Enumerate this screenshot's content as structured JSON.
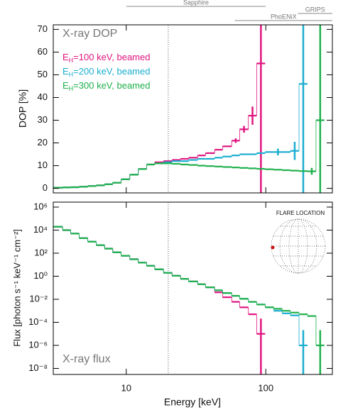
{
  "chart_data": [
    {
      "type": "histogram",
      "panel_label": "X-ray DOP",
      "ylabel": "DOP [%]",
      "xlim": [
        3,
        300
      ],
      "xticks": [
        10,
        100
      ],
      "x_log": true,
      "show_x_tick_labels": false,
      "ylim": [
        -2,
        72
      ],
      "yticks": [
        0,
        10,
        20,
        30,
        40,
        50,
        60,
        70
      ],
      "y_log": false,
      "reference_line_x": 20,
      "instruments": [
        {
          "label": "Sapphire",
          "range": [
            10,
            100
          ]
        },
        {
          "label": "GRIPS",
          "range": [
            170,
            300
          ]
        },
        {
          "label": "PhoENiX",
          "range": [
            60,
            300
          ]
        }
      ],
      "series": [
        {
          "name": "EH=100 keV, beamed",
          "color": "#e0157f",
          "bins": [
            3,
            3.5,
            4,
            4.6,
            5.3,
            6.1,
            7,
            8,
            9.2,
            10.6,
            12.2,
            14,
            16,
            18.5,
            21.3,
            24.5,
            28,
            32.5,
            37,
            43,
            49,
            57,
            65,
            75,
            86,
            99
          ],
          "values": [
            0.3,
            0.4,
            0.5,
            0.7,
            1,
            1.3,
            1.8,
            2.5,
            4,
            6,
            8.5,
            10.5,
            11.5,
            12,
            12.5,
            13,
            13.5,
            14.5,
            15.5,
            17,
            18.5,
            21,
            26,
            32,
            55
          ],
          "errors": [
            null,
            null,
            null,
            null,
            null,
            null,
            null,
            null,
            null,
            null,
            null,
            null,
            null,
            null,
            null,
            null,
            null,
            null,
            null,
            null,
            null,
            1,
            1.5,
            4,
            60
          ]
        },
        {
          "name": "EH=200 keV, beamed",
          "color": "#1aaed0",
          "bins": [
            3,
            3.5,
            4,
            4.6,
            5.3,
            6.1,
            7,
            8,
            9.2,
            10.6,
            12.2,
            14,
            16,
            18.5,
            21.3,
            24.5,
            28,
            32.5,
            37,
            43,
            49,
            57,
            65,
            75,
            86,
            99,
            114,
            131,
            150,
            173,
            199
          ],
          "values": [
            0.3,
            0.4,
            0.5,
            0.7,
            1,
            1.3,
            1.8,
            2.5,
            4,
            6,
            8.5,
            10.5,
            11,
            11.5,
            12,
            12,
            12.5,
            13,
            13,
            13.5,
            14,
            14.5,
            15,
            15,
            15.5,
            16,
            16,
            16,
            16.5,
            46
          ],
          "errors": [
            null,
            null,
            null,
            null,
            null,
            null,
            null,
            null,
            null,
            null,
            null,
            null,
            null,
            null,
            null,
            null,
            null,
            null,
            null,
            null,
            null,
            null,
            null,
            null,
            null,
            null,
            1.5,
            null,
            4,
            60
          ]
        },
        {
          "name": "EH=300 keV, beamed",
          "color": "#1fb04c",
          "bins": [
            3,
            3.5,
            4,
            4.6,
            5.3,
            6.1,
            7,
            8,
            9.2,
            10.6,
            12.2,
            14,
            16,
            18.5,
            21.3,
            24.5,
            28,
            32.5,
            37,
            43,
            49,
            57,
            65,
            75,
            86,
            99,
            114,
            131,
            150,
            173,
            199,
            229,
            263
          ],
          "values": [
            0.3,
            0.4,
            0.5,
            0.7,
            1,
            1.3,
            1.8,
            2.5,
            4,
            6,
            8.5,
            10.5,
            11,
            11,
            10.8,
            10.5,
            10.3,
            10,
            9.8,
            9.6,
            9.4,
            9.2,
            9,
            8.8,
            8.6,
            8.4,
            8.2,
            8,
            7.8,
            7.6,
            7.5,
            30
          ],
          "errors": [
            null,
            null,
            null,
            null,
            null,
            null,
            null,
            null,
            null,
            null,
            null,
            null,
            null,
            null,
            null,
            null,
            null,
            null,
            null,
            null,
            null,
            null,
            null,
            null,
            null,
            null,
            null,
            null,
            null,
            null,
            1.5,
            60
          ]
        }
      ]
    },
    {
      "type": "histogram",
      "panel_label": "X-ray flux",
      "ylabel": "Flux [photon s⁻¹ keV⁻¹ cm⁻²]",
      "xlabel": "Energy [keV]",
      "inset_title": "FLARE LOCATION",
      "xlim": [
        3,
        300
      ],
      "xticks": [
        10,
        100
      ],
      "x_log": true,
      "show_x_tick_labels": true,
      "ylim": [
        3e-09,
        2700000.0
      ],
      "y_log": true,
      "yticks": [
        {
          "value": 1000000.0,
          "label": "10⁶"
        },
        {
          "value": 10000.0,
          "label": "10⁴"
        },
        {
          "value": 100.0,
          "label": "10²"
        },
        {
          "value": 1,
          "label": "10⁰"
        },
        {
          "value": 0.01,
          "label": "10⁻²"
        },
        {
          "value": 0.0001,
          "label": "10⁻⁴"
        },
        {
          "value": 1e-06,
          "label": "10⁻⁶"
        },
        {
          "value": 1e-08,
          "label": "10⁻⁸"
        }
      ],
      "reference_line_x": 20,
      "series": [
        {
          "color": "#e0157f",
          "bins": [
            3,
            3.5,
            4,
            4.6,
            5.3,
            6.1,
            7,
            8,
            9.2,
            10.6,
            12.2,
            14,
            16,
            18.5,
            21.3,
            24.5,
            28,
            32.5,
            37,
            43,
            49,
            57,
            65,
            75,
            86,
            99
          ],
          "values": [
            20000.0,
            10000.0,
            5000.0,
            2000.0,
            1000.0,
            500.0,
            250.0,
            120.0,
            60.0,
            30.0,
            15.0,
            8,
            4,
            2,
            1.1,
            0.6,
            0.35,
            0.2,
            0.11,
            0.04,
            0.015,
            0.006,
            0.002,
            0.0005,
            1e-05
          ],
          "errors": [
            null,
            null,
            null,
            null,
            null,
            null,
            null,
            null,
            null,
            null,
            null,
            null,
            null,
            null,
            null,
            null,
            null,
            null,
            null,
            null,
            null,
            null,
            null,
            null,
            0.0002
          ]
        },
        {
          "color": "#1aaed0",
          "bins": [
            3,
            3.5,
            4,
            4.6,
            5.3,
            6.1,
            7,
            8,
            9.2,
            10.6,
            12.2,
            14,
            16,
            18.5,
            21.3,
            24.5,
            28,
            32.5,
            37,
            43,
            49,
            57,
            65,
            75,
            86,
            99,
            114,
            131,
            150,
            173,
            199
          ],
          "values": [
            20000.0,
            10000.0,
            5000.0,
            2000.0,
            1000.0,
            500.0,
            250.0,
            120.0,
            60.0,
            30.0,
            15.0,
            8,
            4,
            2,
            1.1,
            0.6,
            0.35,
            0.2,
            0.11,
            0.06,
            0.035,
            0.02,
            0.011,
            0.006,
            0.0035,
            0.002,
            0.001,
            0.0006,
            0.0004,
            1e-06
          ],
          "errors": [
            null,
            null,
            null,
            null,
            null,
            null,
            null,
            null,
            null,
            null,
            null,
            null,
            null,
            null,
            null,
            null,
            null,
            null,
            null,
            null,
            null,
            null,
            null,
            null,
            null,
            null,
            null,
            null,
            null,
            2e-05
          ]
        },
        {
          "color": "#1fb04c",
          "bins": [
            3,
            3.5,
            4,
            4.6,
            5.3,
            6.1,
            7,
            8,
            9.2,
            10.6,
            12.2,
            14,
            16,
            18.5,
            21.3,
            24.5,
            28,
            32.5,
            37,
            43,
            49,
            57,
            65,
            75,
            86,
            99,
            114,
            131,
            150,
            173,
            199,
            229,
            263
          ],
          "values": [
            20000.0,
            10000.0,
            5000.0,
            2000.0,
            1000.0,
            500.0,
            250.0,
            120.0,
            60.0,
            30.0,
            15.0,
            8,
            4,
            2,
            1.1,
            0.6,
            0.35,
            0.2,
            0.11,
            0.06,
            0.035,
            0.02,
            0.011,
            0.006,
            0.0035,
            0.002,
            0.0015,
            0.001,
            0.0007,
            0.0005,
            0.00035,
            1e-06
          ],
          "errors": [
            null,
            null,
            null,
            null,
            null,
            null,
            null,
            null,
            null,
            null,
            null,
            null,
            null,
            null,
            null,
            null,
            null,
            null,
            null,
            null,
            null,
            null,
            null,
            null,
            null,
            null,
            null,
            null,
            null,
            null,
            null,
            2e-05
          ]
        }
      ]
    }
  ]
}
